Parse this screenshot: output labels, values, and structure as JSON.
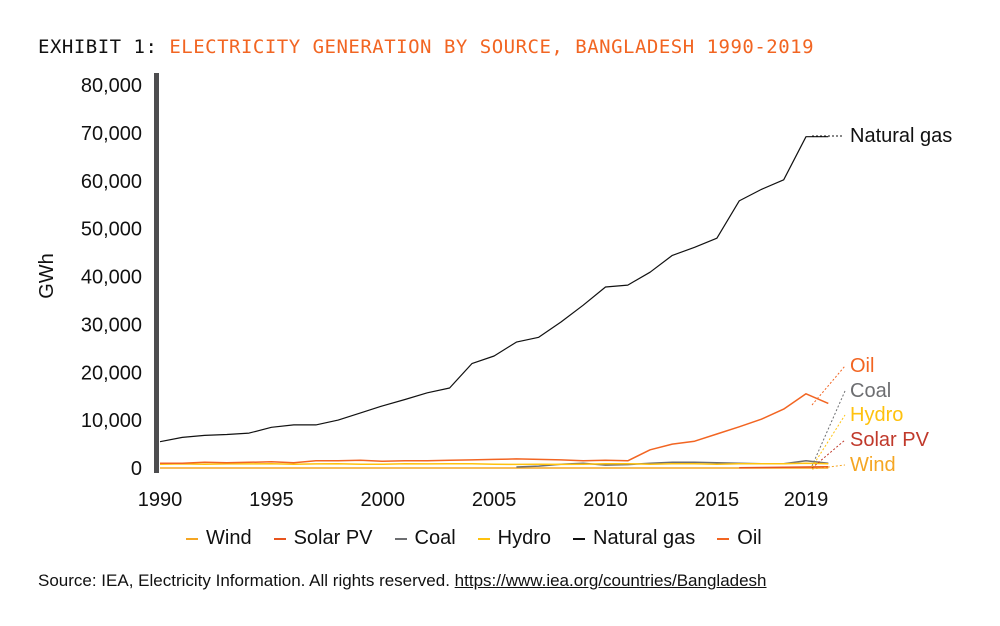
{
  "title": {
    "prefix": "EXHIBIT 1:",
    "text": "ELECTRICITY GENERATION BY SOURCE, BANGLADESH 1990-2019"
  },
  "source": {
    "text": "Source: IEA, Electricity Information. All rights reserved.",
    "link": "https://www.iea.org/countries/Bangladesh"
  },
  "chart_data": {
    "type": "line",
    "ylabel": "GWh",
    "xlabel": "",
    "ylim": [
      0,
      80000
    ],
    "xlim": [
      1990,
      2019
    ],
    "y_ticks": [
      "0",
      "10,000",
      "20,000",
      "30,000",
      "40,000",
      "50,000",
      "60,000",
      "70,000",
      "80,000"
    ],
    "x_ticks": [
      "1990",
      "1995",
      "2000",
      "2005",
      "2010",
      "2015",
      "2019"
    ],
    "x": [
      1990,
      1991,
      1992,
      1993,
      1994,
      1995,
      1996,
      1997,
      1998,
      1999,
      2000,
      2001,
      2002,
      2003,
      2004,
      2005,
      2006,
      2007,
      2008,
      2009,
      2010,
      2011,
      2012,
      2013,
      2014,
      2015,
      2016,
      2017,
      2018,
      2019,
      2020
    ],
    "series": [
      {
        "name": "Wind",
        "color": "#f5a623",
        "values": [
          0,
          0,
          0,
          0,
          0,
          0,
          0,
          0,
          0,
          0,
          0,
          0,
          0,
          0,
          0,
          0,
          0,
          0,
          0,
          0,
          0,
          0,
          0,
          0,
          0,
          0,
          0,
          0,
          0,
          0,
          0
        ]
      },
      {
        "name": "Solar PV",
        "color": "#e8541e",
        "values": [
          null,
          null,
          null,
          null,
          null,
          null,
          null,
          null,
          null,
          null,
          null,
          null,
          null,
          null,
          null,
          null,
          null,
          null,
          null,
          null,
          null,
          null,
          null,
          null,
          null,
          null,
          50,
          100,
          150,
          200,
          250
        ]
      },
      {
        "name": "Coal",
        "color": "#6d6e71",
        "values": [
          null,
          null,
          null,
          null,
          null,
          null,
          null,
          null,
          null,
          null,
          null,
          null,
          null,
          null,
          null,
          null,
          200,
          400,
          800,
          1000,
          600,
          700,
          1000,
          1200,
          1200,
          1100,
          1000,
          900,
          900,
          1500,
          1000
        ]
      },
      {
        "name": "Hydro",
        "color": "#ffc20e",
        "values": [
          800,
          850,
          800,
          850,
          850,
          900,
          800,
          850,
          900,
          800,
          800,
          900,
          850,
          900,
          900,
          800,
          750,
          800,
          750,
          800,
          900,
          900,
          800,
          900,
          900,
          800,
          900,
          900,
          900,
          1000,
          900
        ]
      },
      {
        "name": "Natural gas",
        "color": "#111111",
        "values": [
          5500,
          6400,
          6800,
          7000,
          7300,
          8500,
          9000,
          9000,
          10000,
          11500,
          13000,
          14300,
          15700,
          16700,
          21800,
          23400,
          26300,
          27300,
          30500,
          34000,
          37800,
          38200,
          40900,
          44400,
          46100,
          48000,
          55800,
          58200,
          60200,
          69200,
          69200
        ]
      },
      {
        "name": "Oil",
        "color": "#f26522",
        "values": [
          1000,
          1000,
          1200,
          1100,
          1200,
          1300,
          1100,
          1500,
          1500,
          1600,
          1400,
          1500,
          1500,
          1600,
          1700,
          1800,
          1900,
          1800,
          1700,
          1500,
          1600,
          1500,
          3800,
          5000,
          5600,
          7100,
          8600,
          10200,
          12300,
          15500,
          13500
        ]
      }
    ],
    "end_labels": [
      {
        "name": "Natural gas",
        "color": "#111111"
      },
      {
        "name": "Oil",
        "color": "#f26522"
      },
      {
        "name": "Coal",
        "color": "#6d6e71"
      },
      {
        "name": "Hydro",
        "color": "#ffc20e"
      },
      {
        "name": "Solar PV",
        "color": "#c0392b"
      },
      {
        "name": "Wind",
        "color": "#f5a623"
      }
    ],
    "legend": {
      "position": "bottom"
    },
    "grid": false
  }
}
